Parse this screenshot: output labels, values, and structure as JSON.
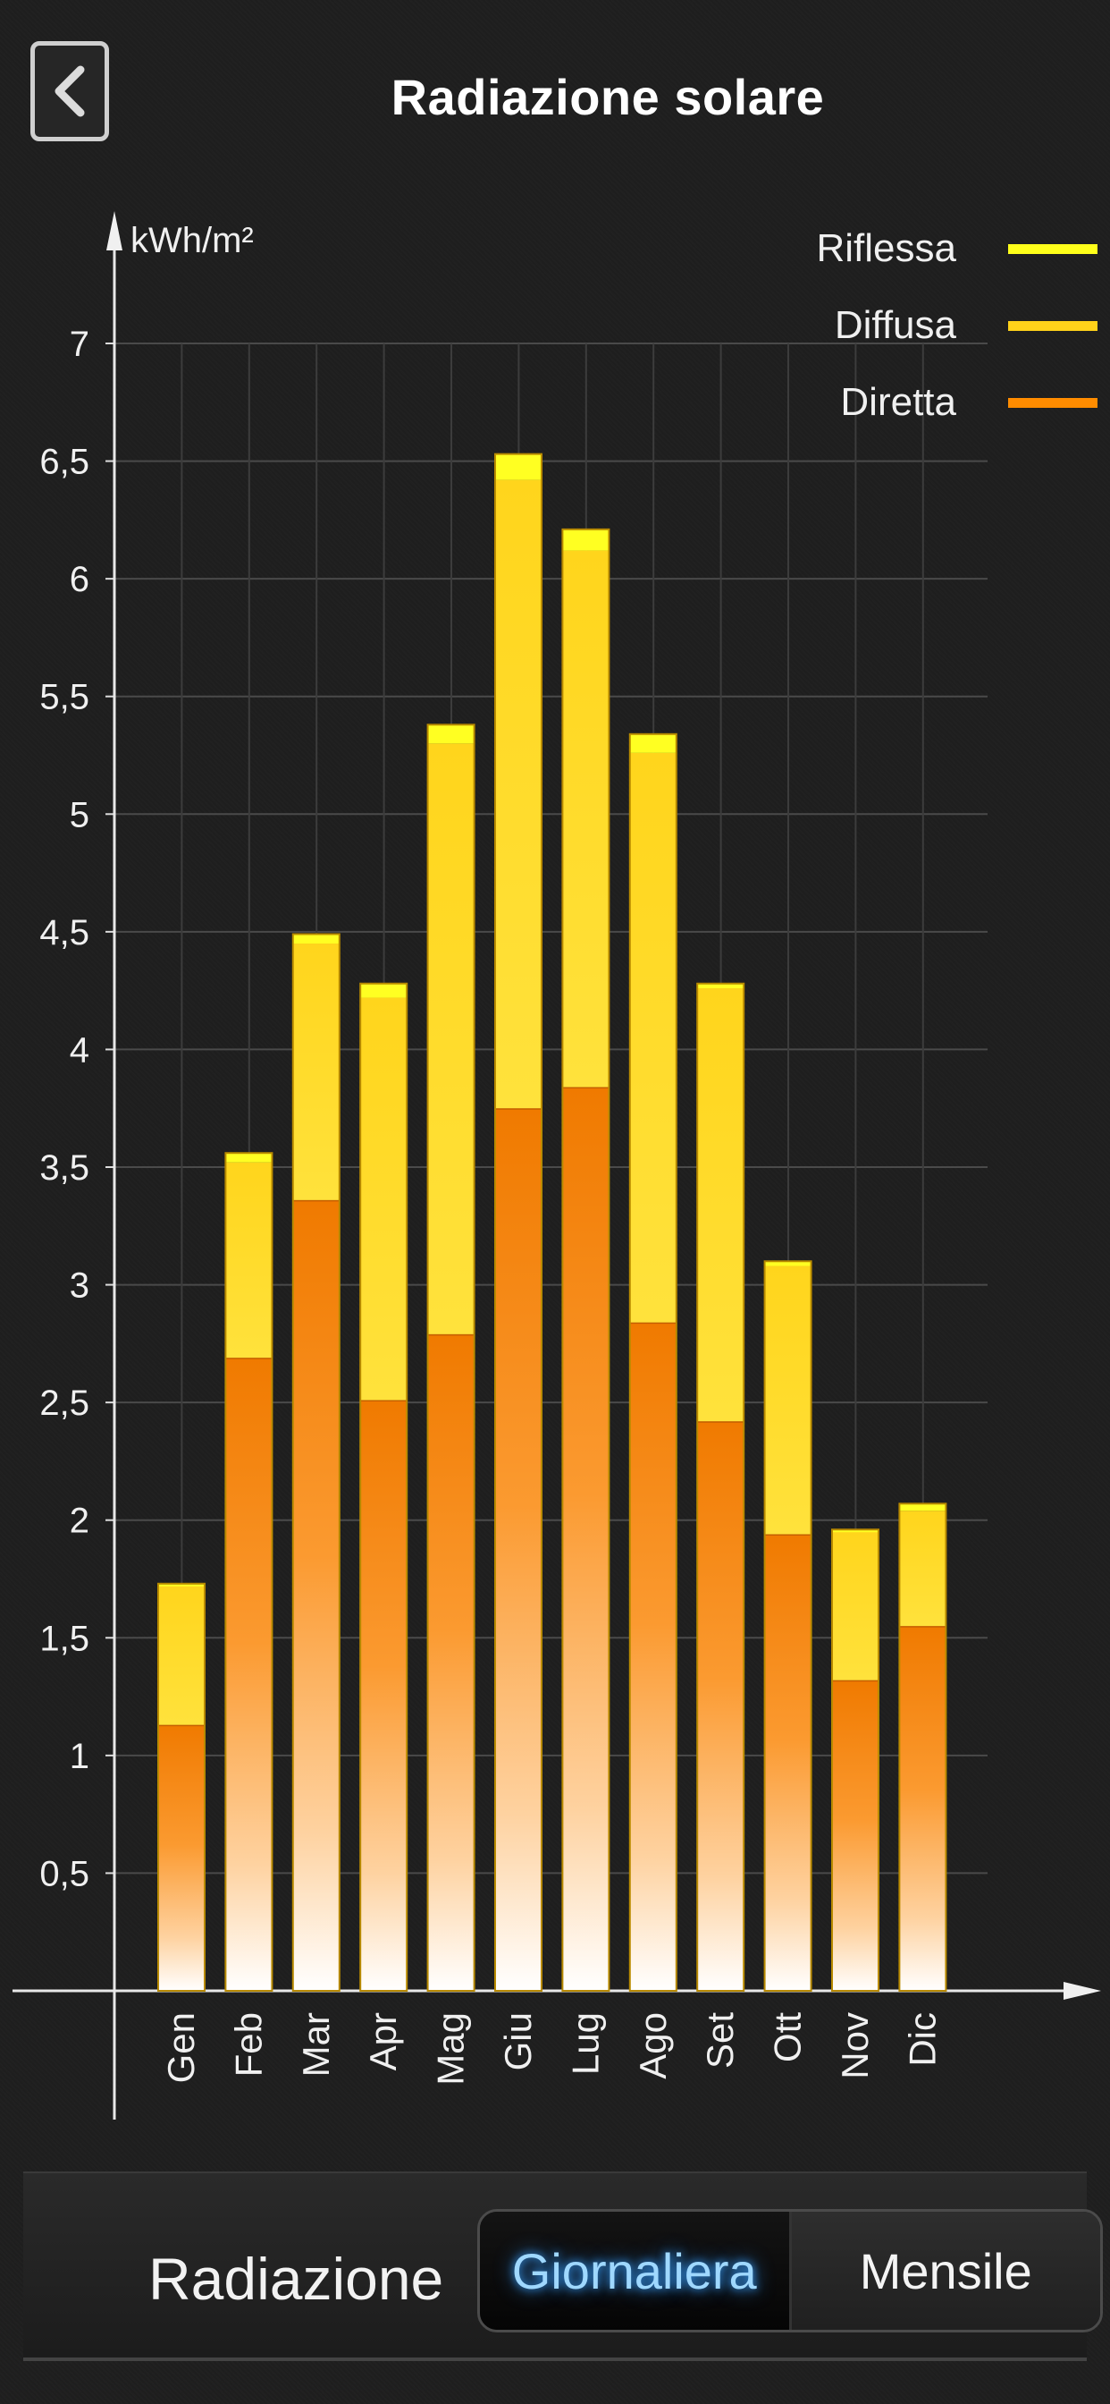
{
  "header": {
    "title": "Radiazione solare"
  },
  "legend": [
    {
      "label": "Riflessa",
      "color": "#ffff1a"
    },
    {
      "label": "Diffusa",
      "color": "#ffd21a"
    },
    {
      "label": "Diretta",
      "color": "#ff8c00"
    }
  ],
  "chart_data": {
    "type": "bar",
    "stacked": true,
    "ylabel": "kWh/m²",
    "ylim": [
      0,
      7
    ],
    "yticks": [
      "0,5",
      "1",
      "1,5",
      "2",
      "2,5",
      "3",
      "3,5",
      "4",
      "4,5",
      "5",
      "5,5",
      "6",
      "6,5",
      "7"
    ],
    "categories": [
      "Gen",
      "Feb",
      "Mar",
      "Apr",
      "Mag",
      "Giu",
      "Lug",
      "Ago",
      "Set",
      "Ott",
      "Nov",
      "Dic"
    ],
    "series": [
      {
        "name": "Diretta",
        "values": [
          1.13,
          2.69,
          3.36,
          2.51,
          2.79,
          3.75,
          3.84,
          2.84,
          2.42,
          1.94,
          1.32,
          1.55
        ]
      },
      {
        "name": "Diffusa",
        "values": [
          0.59,
          0.83,
          1.09,
          1.71,
          2.51,
          2.67,
          2.28,
          2.42,
          1.84,
          1.14,
          0.63,
          0.49
        ]
      },
      {
        "name": "Riflessa",
        "values": [
          0.01,
          0.04,
          0.04,
          0.06,
          0.08,
          0.11,
          0.09,
          0.08,
          0.02,
          0.02,
          0.01,
          0.03
        ]
      }
    ],
    "grid": true,
    "legend_position": "top-right"
  },
  "footer": {
    "label": "Radiazione",
    "options": [
      "Giornaliera",
      "Mensile"
    ],
    "selected": "Giornaliera"
  }
}
